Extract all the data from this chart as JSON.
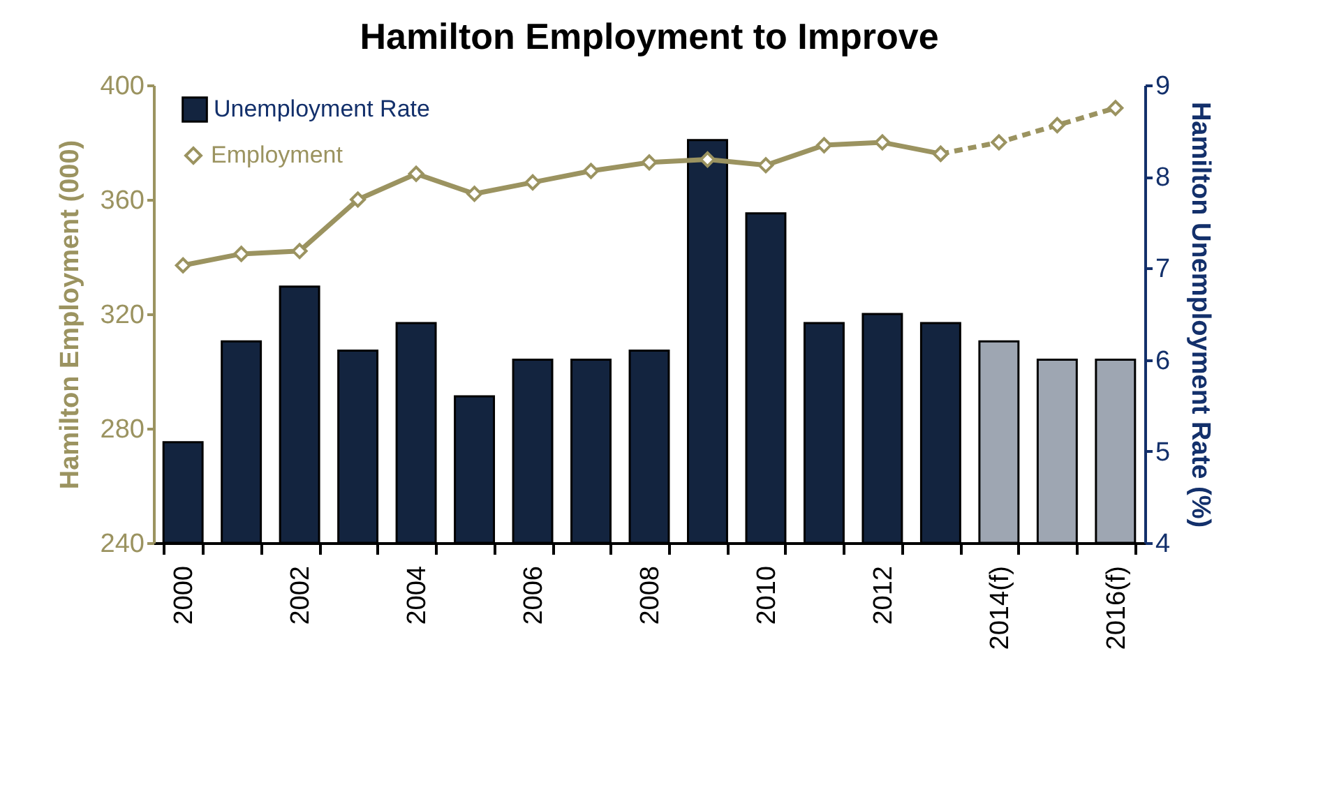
{
  "chart_data": {
    "type": "bar",
    "title": "Hamilton Employment to Improve",
    "ylabel": "Hamilton Employment (000)",
    "y2label": "Hamilton Unemployment Rate (%)",
    "categories": [
      "2000",
      null,
      "2002",
      null,
      "2004",
      null,
      "2006",
      null,
      "2008",
      null,
      "2010",
      null,
      "2012",
      null,
      "2014(f)",
      null,
      "2016(f)"
    ],
    "series": [
      {
        "name": "Unemployment Rate",
        "axis": "y2",
        "color": "#13243f",
        "colors": [
          "#13243f",
          "#13243f",
          "#13243f",
          "#13243f",
          "#13243f",
          "#13243f",
          "#13243f",
          "#13243f",
          "#13243f",
          "#13243f",
          "#13243f",
          "#13243f",
          "#13243f",
          "#13243f",
          "#9ea6b2",
          "#9ea6b2",
          "#9ea6b2"
        ],
        "values": [
          5.1,
          6.2,
          6.8,
          6.1,
          6.4,
          5.6,
          6.0,
          6.0,
          6.1,
          8.4,
          7.6,
          6.4,
          6.5,
          6.4,
          6.2,
          6.0,
          6.0
        ]
      },
      {
        "name": "Employment",
        "type": "line",
        "color": "#9b9360",
        "line_style": "solid",
        "values": [
          337,
          341,
          342,
          360,
          369,
          362,
          366,
          370,
          373,
          374,
          372,
          379,
          380,
          376,
          null,
          null,
          null
        ]
      },
      {
        "type": "line",
        "color": "#9b9360",
        "line_style": "dashed",
        "values": [
          null,
          null,
          null,
          null,
          null,
          null,
          null,
          null,
          null,
          null,
          null,
          null,
          null,
          376,
          380,
          386,
          392
        ]
      }
    ],
    "ylim": [
      240,
      400
    ],
    "yticks": [
      240,
      280,
      320,
      360,
      400
    ],
    "y2lim": [
      4,
      9
    ],
    "y2ticks": [
      4,
      5,
      6,
      7,
      8,
      9
    ],
    "marker": "diamond",
    "legend": "top left",
    "grid": false
  }
}
